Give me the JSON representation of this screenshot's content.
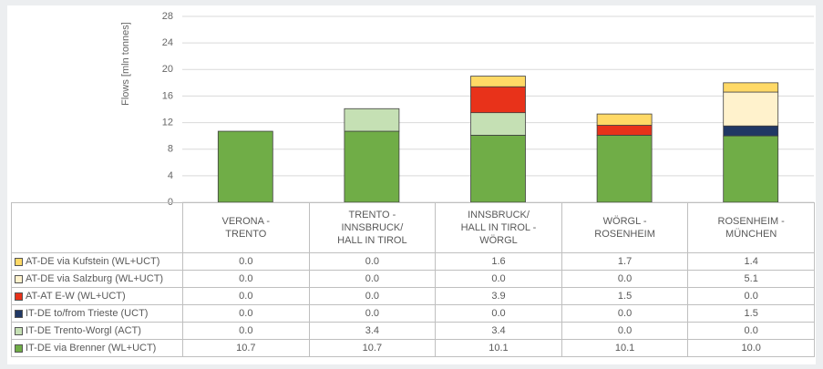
{
  "chart_data": {
    "type": "stacked_bar",
    "ylabel": "Flows [mln tonnes]",
    "categories": [
      "VERONA -\nTRENTO",
      "TRENTO -\nINNSBRUCK/\nHALL IN TIROL",
      "INNSBRUCK/\nHALL IN TIROL -\nWÖRGL",
      "WÖRGL -\nROSENHEIM",
      "ROSENHEIM -\nMÜNCHEN"
    ],
    "series": [
      {
        "name": "IT-DE via Brenner (WL+UCT)",
        "color": "#70ad47",
        "values": [
          10.7,
          10.7,
          10.1,
          10.1,
          10.0
        ],
        "value_labels": [
          "10.7",
          "10.7",
          "10.1",
          "10.1",
          "10.0"
        ]
      },
      {
        "name": "IT-DE Trento-Worgl (ACT)",
        "color": "#c5e0b4",
        "values": [
          0,
          3.4,
          3.4,
          0,
          0
        ],
        "value_labels": [
          "0.0",
          "3.4",
          "3.4",
          "0.0",
          "0.0"
        ]
      },
      {
        "name": "IT-DE to/from Trieste (UCT)",
        "color": "#203864",
        "values": [
          0,
          0,
          0,
          0,
          1.5
        ],
        "value_labels": [
          "0.0",
          "0.0",
          "0.0",
          "0.0",
          "1.5"
        ]
      },
      {
        "name": "AT-AT E-W (WL+UCT)",
        "color": "#e8321a",
        "values": [
          0,
          0,
          3.9,
          1.5,
          0
        ],
        "value_labels": [
          "0.0",
          "0.0",
          "3.9",
          "1.5",
          "0.0"
        ]
      },
      {
        "name": "AT-DE via Salzburg (WL+UCT)",
        "color": "#fff2cc",
        "values": [
          0,
          0,
          0,
          0,
          5.1
        ],
        "value_labels": [
          "0.0",
          "0.0",
          "0.0",
          "0.0",
          "5.1"
        ]
      },
      {
        "name": "AT-DE via Kufstein (WL+UCT)",
        "color": "#ffd966",
        "values": [
          0,
          0,
          1.6,
          1.7,
          1.4
        ],
        "value_labels": [
          "0.0",
          "0.0",
          "1.6",
          "1.7",
          "1.4"
        ]
      }
    ],
    "ylim": [
      0,
      28
    ],
    "yticks": [
      0,
      4,
      8,
      12,
      16,
      20,
      24,
      28
    ],
    "grid": true
  }
}
